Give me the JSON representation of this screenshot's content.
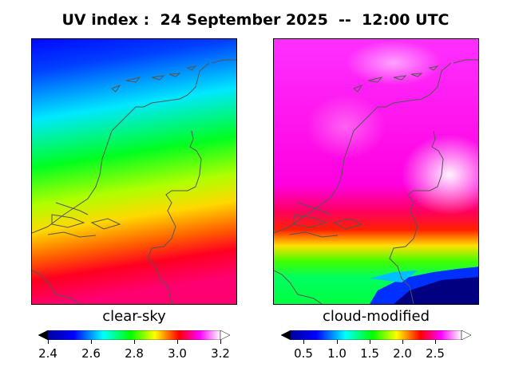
{
  "title": "UV index :  24 September 2025  --  12:00 UTC",
  "panels": [
    {
      "label": "clear-sky",
      "colorbar": {
        "min": 2.4,
        "max": 3.2,
        "ticks": [
          "2.4",
          "2.6",
          "2.8",
          "3.0",
          "3.2"
        ],
        "tick_values": [
          2.4,
          2.6,
          2.8,
          3.0,
          3.2
        ]
      }
    },
    {
      "label": "cloud-modified",
      "colorbar": {
        "min": 0.3,
        "max": 2.9,
        "ticks": [
          "0.5",
          "1.0",
          "1.5",
          "2.0",
          "2.5"
        ],
        "tick_values": [
          0.5,
          1.0,
          1.5,
          2.0,
          2.5
        ]
      }
    }
  ],
  "colors": {
    "scale": [
      "#000000",
      "#0000ff",
      "#00ffff",
      "#00ff00",
      "#ffff00",
      "#ff0000",
      "#ff00ff",
      "#ffffff"
    ],
    "coastline": "#555555"
  }
}
